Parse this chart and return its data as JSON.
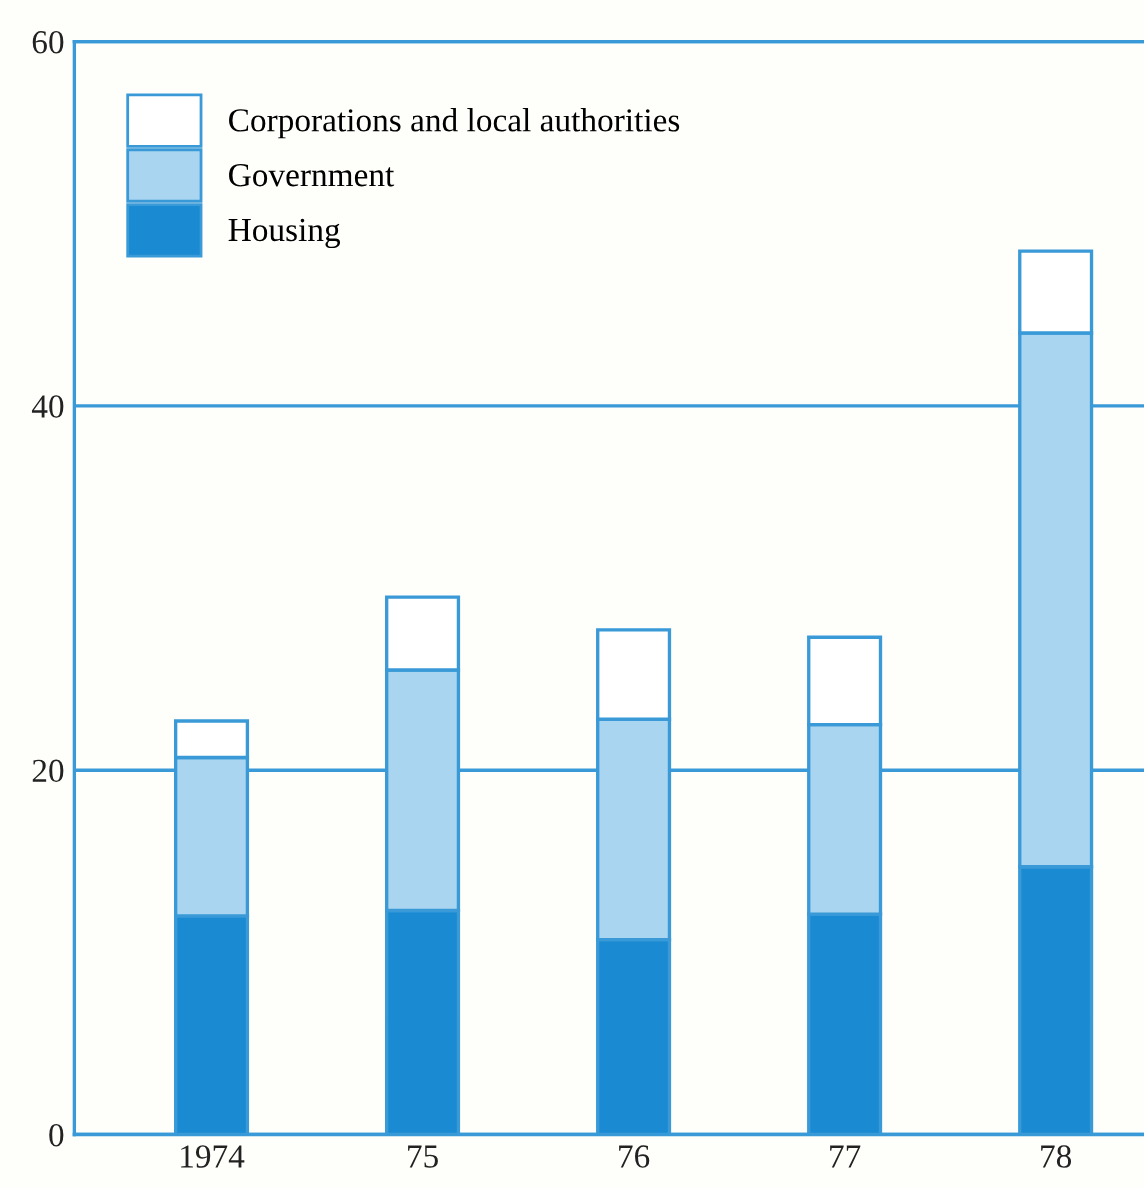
{
  "chart_data": {
    "type": "bar",
    "stacked": true,
    "categories": [
      "1974",
      "75",
      "76",
      "77",
      "78"
    ],
    "series": [
      {
        "name": "Housing",
        "color": "#1a8ad2",
        "values": [
          12.0,
          12.3,
          10.7,
          12.1,
          14.7
        ]
      },
      {
        "name": "Government",
        "color": "#a9d5f1",
        "values": [
          8.7,
          13.2,
          12.1,
          10.4,
          29.3
        ]
      },
      {
        "name": "Corporations and local authorities",
        "color": "#ffffff",
        "values": [
          2.0,
          4.0,
          4.9,
          4.8,
          4.5
        ]
      }
    ],
    "ylim": [
      0,
      60
    ],
    "yticks": [
      0,
      20,
      40,
      60
    ],
    "grid": "y",
    "legend": "top left"
  }
}
